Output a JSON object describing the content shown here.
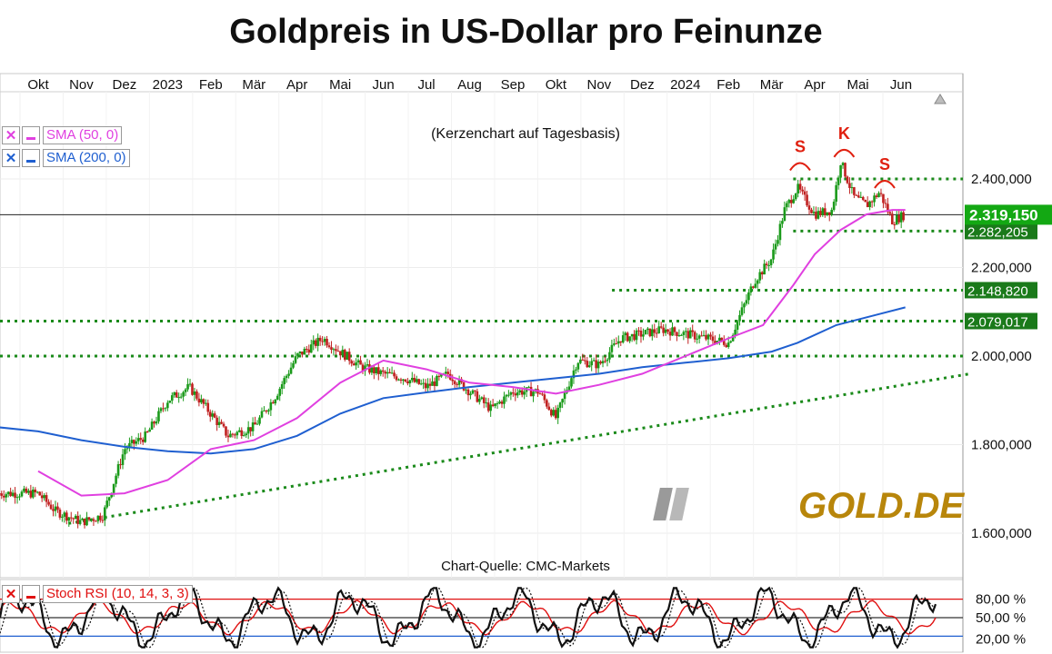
{
  "title": "Goldpreis in US-Dollar pro Feinunze",
  "subtitle": "(Kerzenchart auf Tagesbasis)",
  "source": "Chart-Quelle: CMC-Markets",
  "logo_text": "GOLD.DE",
  "colors": {
    "sma50": "#e040e0",
    "sma200": "#1f5fd0",
    "candle_up": "#1a9a1a",
    "candle_down": "#c02020",
    "level": "#1a8a1a",
    "trend": "#1a8a1a",
    "stoch_k": "#111111",
    "rsi": "#e01010",
    "hs_marker": "#e02010"
  },
  "legend": [
    {
      "x": "✕",
      "label": "SMA (50, 0)",
      "color": "#e040e0"
    },
    {
      "x": "✕",
      "label": "SMA (200, 0)",
      "color": "#1f5fd0"
    }
  ],
  "osc_legend": {
    "x": "✕",
    "label": "Stoch RSI (10, 14, 3, 3)",
    "color": "#e01010"
  },
  "chart_data": {
    "type": "candlestick",
    "title": "Goldpreis in US-Dollar pro Feinunze",
    "subtitle": "(Kerzenchart auf Tagesbasis)",
    "x_ticks": [
      "Okt",
      "Nov",
      "Dez",
      "2023",
      "Feb",
      "Mär",
      "Apr",
      "Mai",
      "Jun",
      "Jul",
      "Aug",
      "Sep",
      "Okt",
      "Nov",
      "Dez",
      "2024",
      "Feb",
      "Mär",
      "Apr",
      "Mai",
      "Jun"
    ],
    "y_ticks": [
      "1.600,000",
      "1.800,000",
      "2.000,000",
      "2.200,000",
      "2.400,000"
    ],
    "ylim": [
      1560,
      2520
    ],
    "price_path": [
      [
        0,
        1690
      ],
      [
        0.4,
        1650
      ],
      [
        1,
        1625
      ],
      [
        1.5,
        1640
      ],
      [
        2,
        1790
      ],
      [
        2.5,
        1820
      ],
      [
        3,
        1900
      ],
      [
        3.5,
        1930
      ],
      [
        4,
        1870
      ],
      [
        4.4,
        1820
      ],
      [
        5,
        1840
      ],
      [
        5.5,
        1910
      ],
      [
        6,
        2000
      ],
      [
        6.6,
        2040
      ],
      [
        7,
        2010
      ],
      [
        7.5,
        1975
      ],
      [
        8,
        1960
      ],
      [
        8.5,
        1950
      ],
      [
        9,
        1930
      ],
      [
        9.5,
        1960
      ],
      [
        10,
        1920
      ],
      [
        10.5,
        1880
      ],
      [
        11,
        1920
      ],
      [
        11.6,
        1920
      ],
      [
        12,
        1860
      ],
      [
        12.5,
        1990
      ],
      [
        13,
        1980
      ],
      [
        13.5,
        2040
      ],
      [
        14,
        2050
      ],
      [
        14.5,
        2060
      ],
      [
        15,
        2050
      ],
      [
        15.5,
        2040
      ],
      [
        16,
        2030
      ],
      [
        16.6,
        2170
      ],
      [
        17,
        2220
      ],
      [
        17.3,
        2330
      ],
      [
        17.6,
        2380
      ],
      [
        18,
        2320
      ],
      [
        18.4,
        2330
      ],
      [
        18.6,
        2440
      ],
      [
        18.9,
        2360
      ],
      [
        19.2,
        2340
      ],
      [
        19.5,
        2370
      ],
      [
        19.8,
        2305
      ],
      [
        20.1,
        2320
      ]
    ],
    "sma50_path": [
      [
        0,
        1740
      ],
      [
        1,
        1685
      ],
      [
        2,
        1690
      ],
      [
        3,
        1720
      ],
      [
        4,
        1790
      ],
      [
        5,
        1810
      ],
      [
        6,
        1860
      ],
      [
        7,
        1940
      ],
      [
        8,
        1990
      ],
      [
        9,
        1970
      ],
      [
        10,
        1940
      ],
      [
        11,
        1930
      ],
      [
        12,
        1915
      ],
      [
        13,
        1935
      ],
      [
        14,
        1960
      ],
      [
        15,
        2000
      ],
      [
        16,
        2040
      ],
      [
        16.8,
        2070
      ],
      [
        17.5,
        2160
      ],
      [
        18,
        2230
      ],
      [
        18.6,
        2285
      ],
      [
        19.2,
        2320
      ],
      [
        19.8,
        2330
      ],
      [
        20.1,
        2330
      ]
    ],
    "sma200_path": [
      [
        -1,
        1840
      ],
      [
        0,
        1830
      ],
      [
        1,
        1810
      ],
      [
        2,
        1795
      ],
      [
        3,
        1785
      ],
      [
        4,
        1780
      ],
      [
        5,
        1790
      ],
      [
        6,
        1820
      ],
      [
        7,
        1870
      ],
      [
        8,
        1905
      ],
      [
        9,
        1918
      ],
      [
        10,
        1930
      ],
      [
        11,
        1940
      ],
      [
        12,
        1950
      ],
      [
        13,
        1960
      ],
      [
        14,
        1975
      ],
      [
        15,
        1985
      ],
      [
        16,
        1995
      ],
      [
        17,
        2010
      ],
      [
        17.6,
        2030
      ],
      [
        18.5,
        2070
      ],
      [
        19.5,
        2095
      ],
      [
        20.1,
        2110
      ]
    ],
    "levels": [
      {
        "price": 2400,
        "label": "",
        "from_month": 17.5
      },
      {
        "price": 2282.205,
        "label": "2.282,205",
        "from_month": 17.5
      },
      {
        "price": 2148.82,
        "label": "2.148,820",
        "from_month": 13.3
      },
      {
        "price": 2079.017,
        "label": "2.079,017",
        "from_month": -1
      },
      {
        "price": 2000,
        "label": "",
        "from_month": -1
      }
    ],
    "current_price": {
      "price": 2319.15,
      "label": "2.319,150"
    },
    "trendline": [
      [
        0.7,
        1622
      ],
      [
        21.6,
        1960
      ]
    ],
    "markers": [
      {
        "label": "S",
        "month": 17.66,
        "price": 2440
      },
      {
        "label": "K",
        "month": 18.68,
        "price": 2470
      },
      {
        "label": "S",
        "month": 19.62,
        "price": 2400
      }
    ],
    "oscillator": {
      "name": "Stoch RSI (10, 14, 3, 3)",
      "levels": [
        {
          "value": 80,
          "label": "80,00 %"
        },
        {
          "value": 50,
          "label": "50,00 %"
        },
        {
          "value": 20,
          "label": "20,00 %"
        }
      ]
    }
  }
}
